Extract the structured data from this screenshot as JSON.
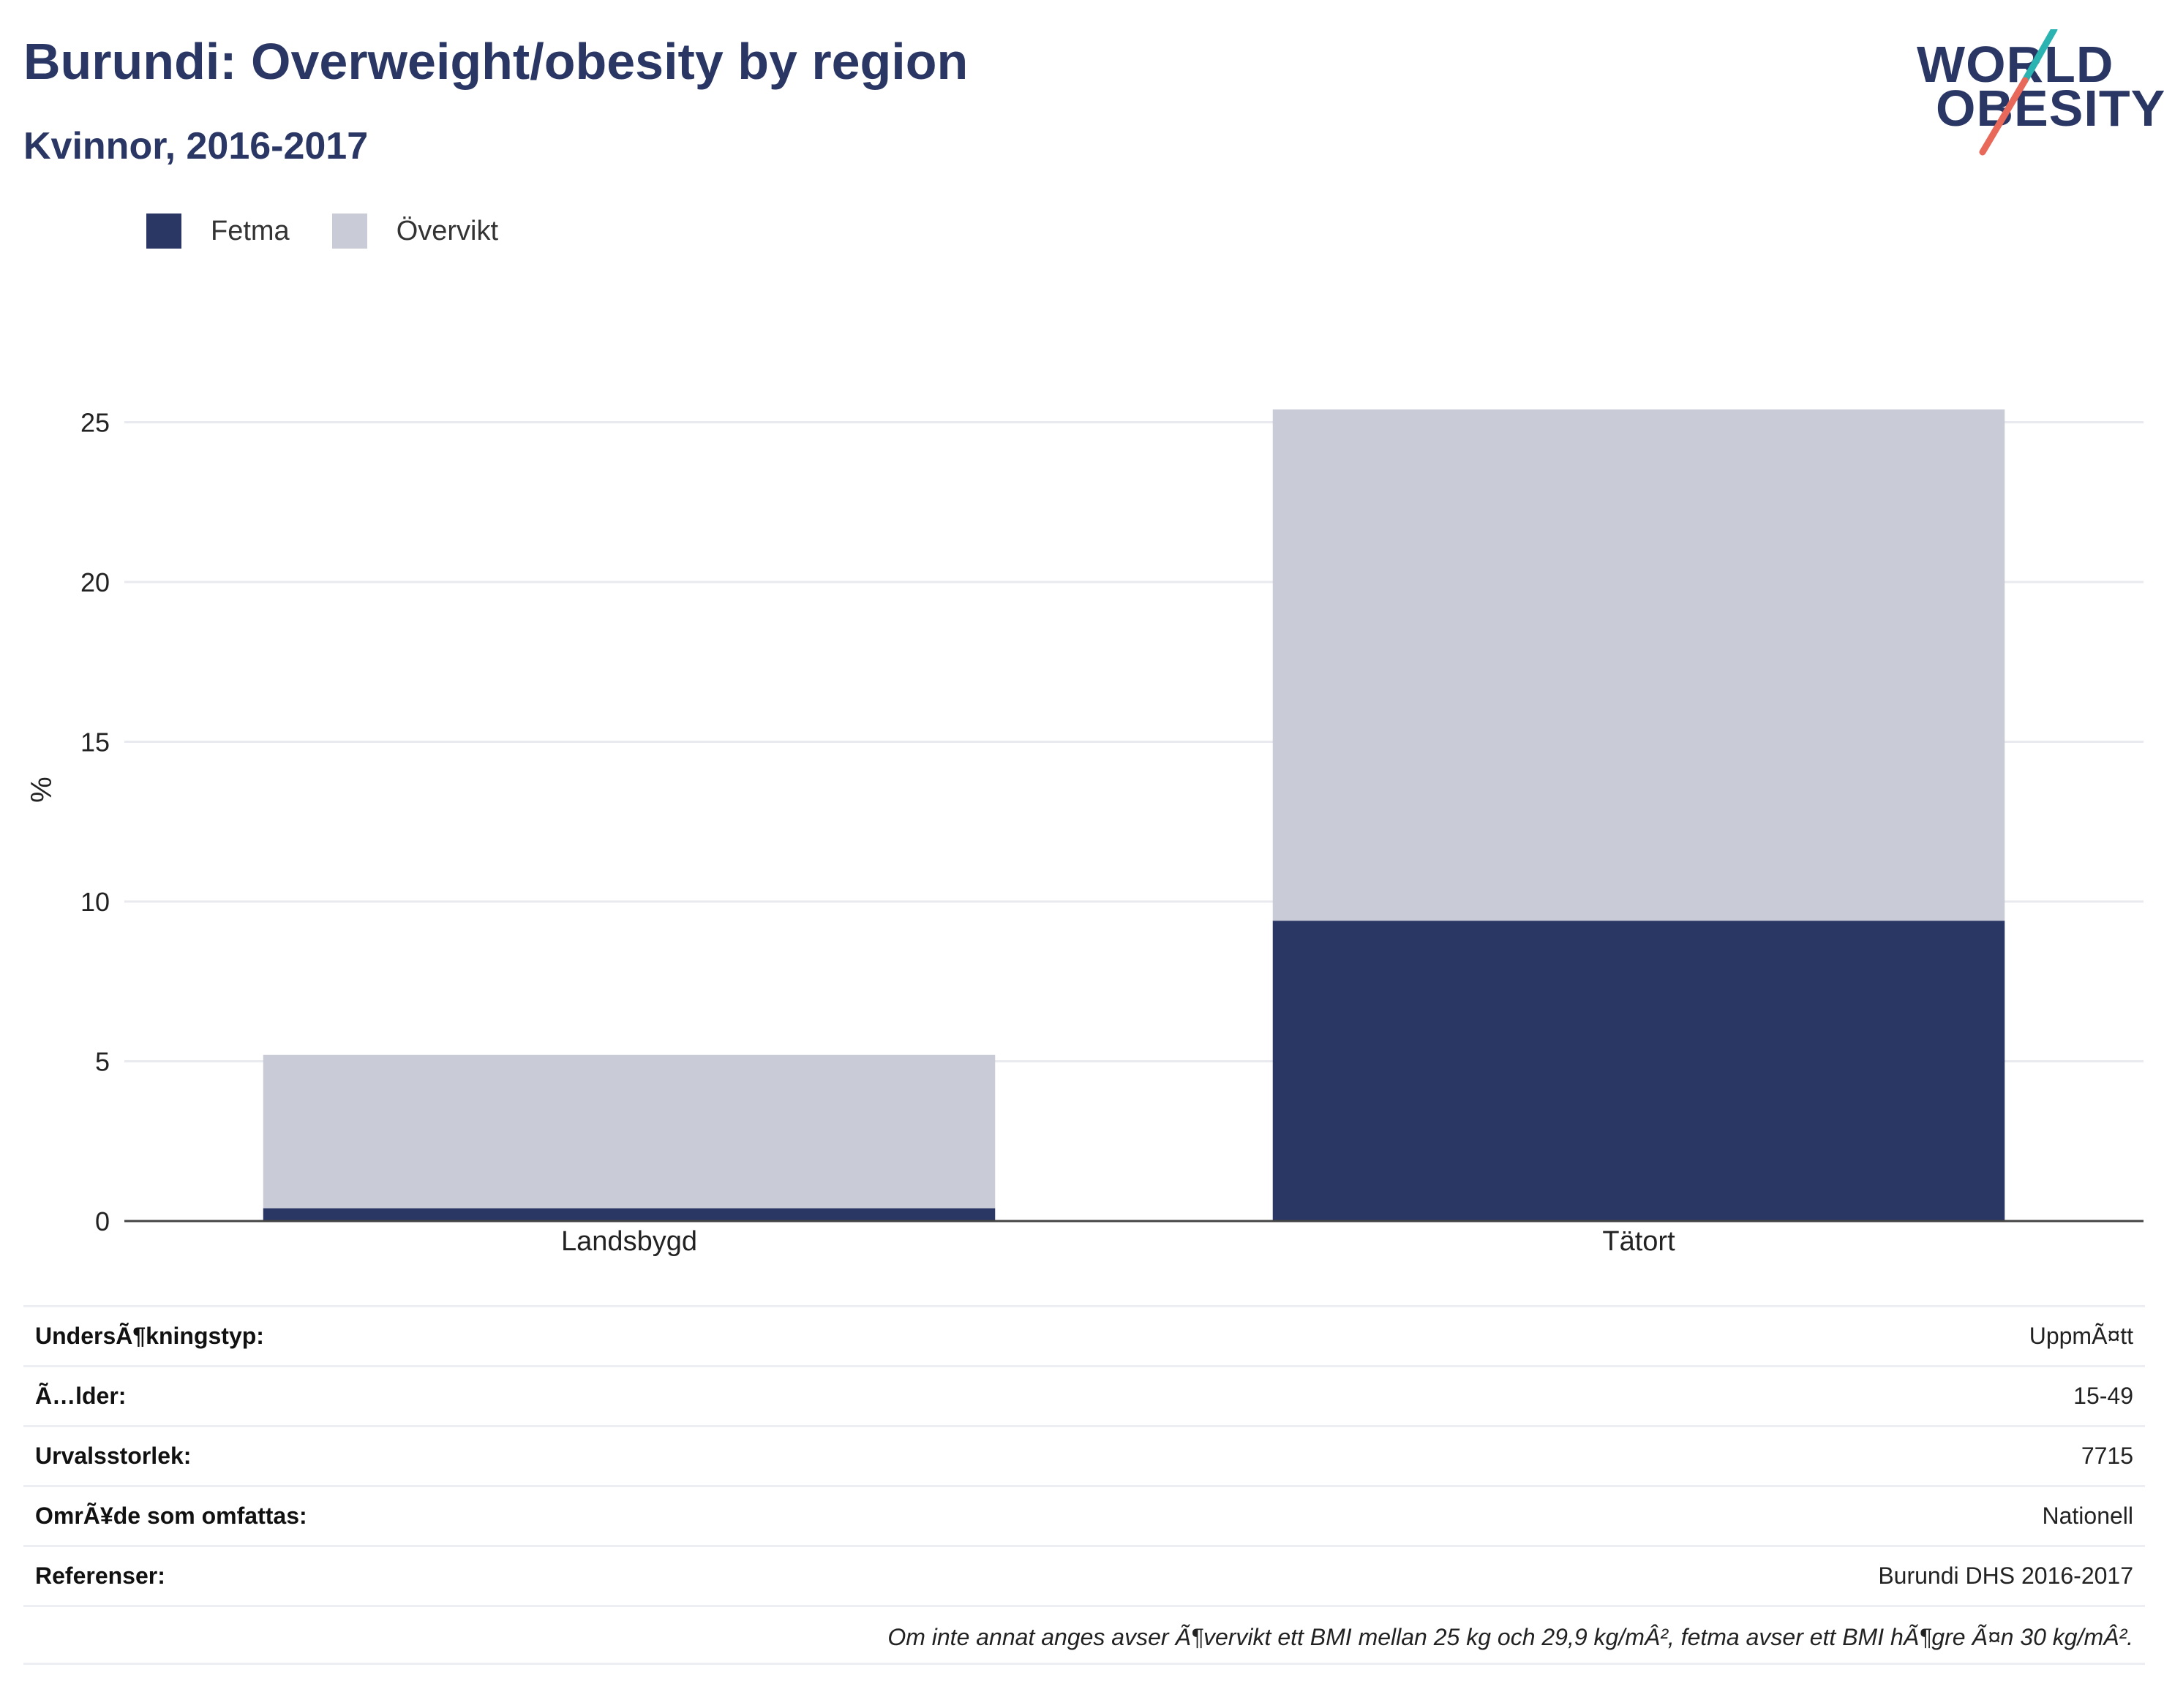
{
  "header": {
    "title": "Burundi: Overweight/obesity by region",
    "subtitle": "Kvinnor, 2016-2017"
  },
  "logo": {
    "line1": "WORLD",
    "line2": "OBESITY",
    "colors": {
      "text": "#2a3764",
      "slash_top": "#2bb3b1",
      "slash_bottom": "#e8685a"
    }
  },
  "legend": [
    {
      "label": "Fetma",
      "color": "#2a3764"
    },
    {
      "label": "Övervikt",
      "color": "#c9ccd7"
    }
  ],
  "chart_data": {
    "type": "bar",
    "stacked": true,
    "categories": [
      "Landsbygd",
      "Tätort"
    ],
    "series": [
      {
        "name": "Fetma",
        "color": "#2a3764",
        "values": [
          0.4,
          9.4
        ]
      },
      {
        "name": "Övervikt",
        "color": "#c9ccd7",
        "values": [
          4.8,
          16.0
        ]
      }
    ],
    "ylabel": "%",
    "ylim": [
      0,
      27
    ],
    "yticks": [
      0,
      5,
      10,
      15,
      20,
      25
    ],
    "grid": true,
    "legend_position": "top-left"
  },
  "info": {
    "rows": [
      {
        "label": "UndersÃ¶kningstyp:",
        "value": "UppmÃ¤tt"
      },
      {
        "label": "Ã…lder:",
        "value": "15-49"
      },
      {
        "label": "Urvalsstorlek:",
        "value": "7715"
      },
      {
        "label": "OmrÃ¥de som omfattas:",
        "value": "Nationell"
      },
      {
        "label": "Referenser:",
        "value": "Burundi DHS 2016-2017"
      }
    ],
    "note": "Om inte annat anges avser Ã¶vervikt ett BMI mellan 25 kg och 29,9 kg/mÂ², fetma avser ett BMI hÃ¶gre Ã¤n 30 kg/mÂ²."
  }
}
